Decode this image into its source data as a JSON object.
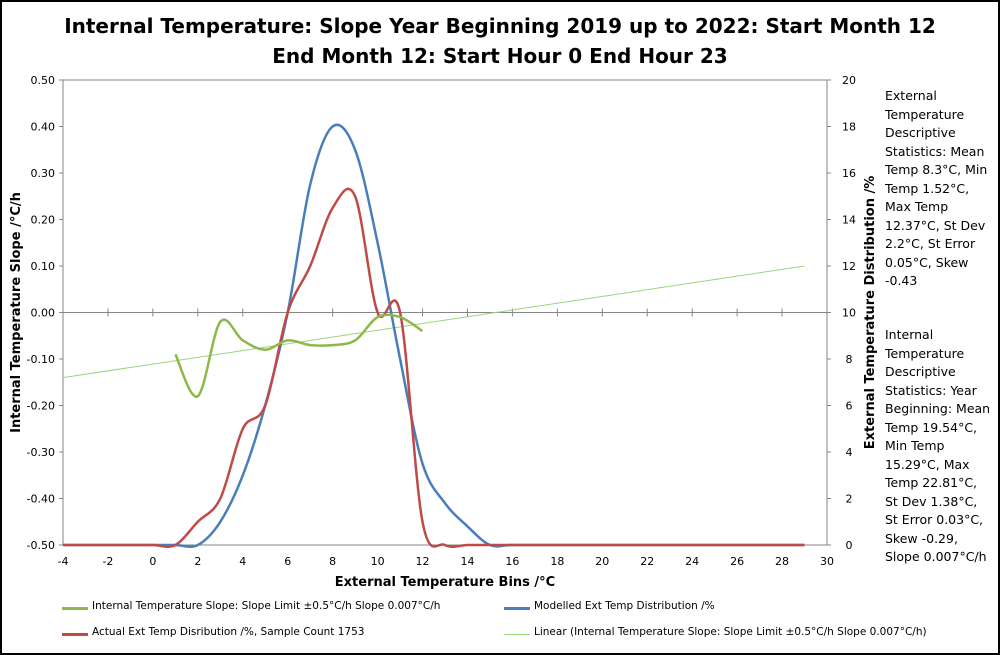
{
  "chart_data": {
    "type": "line",
    "title_line1": "Internal Temperature: Slope Year Beginning 2019 up to 2022: Start Month 12",
    "title_line2": "End Month 12: Start Hour 0 End Hour 23",
    "xlabel": "External Temperature Bins /°C",
    "ylabel_left": "Internal Temperature Slope /°C/h",
    "ylabel_right": "External Temperature Distribution /%",
    "xlim": [
      -4,
      30
    ],
    "ylim_left": [
      -0.5,
      0.5
    ],
    "ylim_right": [
      0,
      20
    ],
    "x_ticks": [
      -4,
      -2,
      0,
      2,
      4,
      6,
      8,
      10,
      12,
      14,
      16,
      18,
      20,
      22,
      24,
      26,
      28,
      30
    ],
    "y_left_ticks": [
      0.5,
      0.4,
      0.3,
      0.2,
      0.1,
      0.0,
      -0.1,
      -0.2,
      -0.3,
      -0.4,
      -0.5
    ],
    "y_left_tick_labels": [
      "0.50",
      "0.40",
      "0.30",
      "0.20",
      "0.10",
      "0.00",
      "-0.10",
      "-0.20",
      "-0.30",
      "-0.40",
      "-0.50"
    ],
    "y_right_ticks": [
      20,
      18,
      16,
      14,
      12,
      10,
      8,
      6,
      4,
      2,
      0
    ],
    "grid": false,
    "legend_position": "bottom",
    "series": [
      {
        "name": "Internal Temperature Slope: Slope Limit ±0.5°C/h Slope 0.007°C/h",
        "axis": "left",
        "color": "#8db84a",
        "x": [
          1,
          2,
          3,
          4,
          5,
          6,
          7,
          8,
          9,
          10,
          11,
          12
        ],
        "values": [
          -0.09,
          -0.18,
          -0.02,
          -0.06,
          -0.08,
          -0.06,
          -0.07,
          -0.07,
          -0.06,
          -0.01,
          -0.01,
          -0.04
        ]
      },
      {
        "name": "Modelled Ext Temp Distribution /%",
        "axis": "right",
        "color": "#4a7ebb",
        "x": [
          -4,
          -3,
          -2,
          -1,
          0,
          1,
          2,
          3,
          4,
          5,
          6,
          7,
          8,
          9,
          10,
          11,
          12,
          13,
          14,
          15,
          16,
          18,
          20,
          22,
          24,
          26,
          28,
          29
        ],
        "values": [
          0,
          0,
          0,
          0,
          0,
          0,
          0,
          1.0,
          3.0,
          6.0,
          10.0,
          15.5,
          18.0,
          17.0,
          13.0,
          8.0,
          3.5,
          1.8,
          0.8,
          0,
          0,
          0,
          0,
          0,
          0,
          0,
          0,
          0
        ]
      },
      {
        "name": "Actual Ext Temp Disribution /%, Sample Count 1753",
        "axis": "right",
        "color": "#be4b48",
        "x": [
          -4,
          -3,
          -2,
          -1,
          0,
          1,
          2,
          3,
          4,
          5,
          6,
          7,
          8,
          9,
          10,
          11,
          12,
          13,
          14,
          15,
          16,
          18,
          20,
          22,
          24,
          26,
          28,
          29
        ],
        "values": [
          0,
          0,
          0,
          0,
          0,
          0,
          1.0,
          2.0,
          5.0,
          6.0,
          10.0,
          12.0,
          14.5,
          15.0,
          10.0,
          10.0,
          1.0,
          0,
          0,
          0,
          0,
          0,
          0,
          0,
          0,
          0,
          0,
          0
        ]
      },
      {
        "name": "Linear (Internal Temperature Slope: Slope Limit ±0.5°C/h Slope 0.007°C/h)",
        "axis": "left",
        "color": "#9bd47a",
        "trendline": true,
        "x": [
          -4,
          29
        ],
        "values": [
          -0.14,
          0.1
        ]
      }
    ]
  },
  "stats": {
    "external": "External Temperature Descriptive Statistics: Mean Temp 8.3°C, Min Temp 1.52°C, Max Temp 12.37°C, St Dev 2.2°C, St Error 0.05°C, Skew -0.43",
    "internal": "Internal Temperature Descriptive Statistics: Year Beginning: Mean Temp 19.54°C, Min Temp 15.29°C, Max Temp 22.81°C, St Dev 1.38°C, St Error 0.03°C, Skew -0.29, Slope 0.007°C/h"
  }
}
